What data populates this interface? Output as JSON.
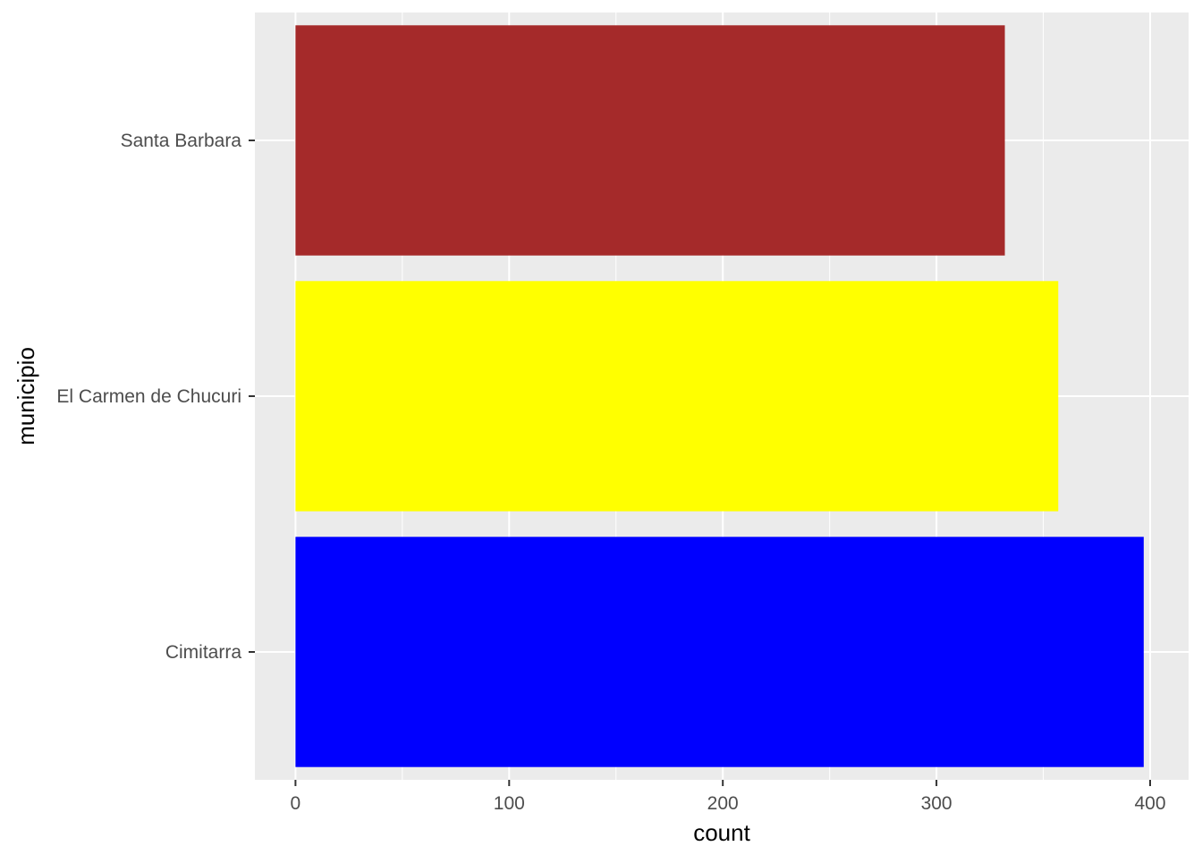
{
  "chart_data": {
    "type": "bar",
    "orientation": "horizontal",
    "categories": [
      "Cimitarra",
      "El Carmen de Chucuri",
      "Santa Barbara"
    ],
    "values": [
      397,
      357,
      332
    ],
    "colors": [
      "#0000FF",
      "#FFFF00",
      "#A52A2A"
    ],
    "xlabel": "count",
    "ylabel": "municipio",
    "xlim": [
      -19,
      418
    ],
    "xticks": [
      0,
      100,
      200,
      300,
      400
    ],
    "grid": true,
    "legend": "none",
    "panel_background": "#EBEBEB",
    "grid_color": "#FFFFFF"
  }
}
